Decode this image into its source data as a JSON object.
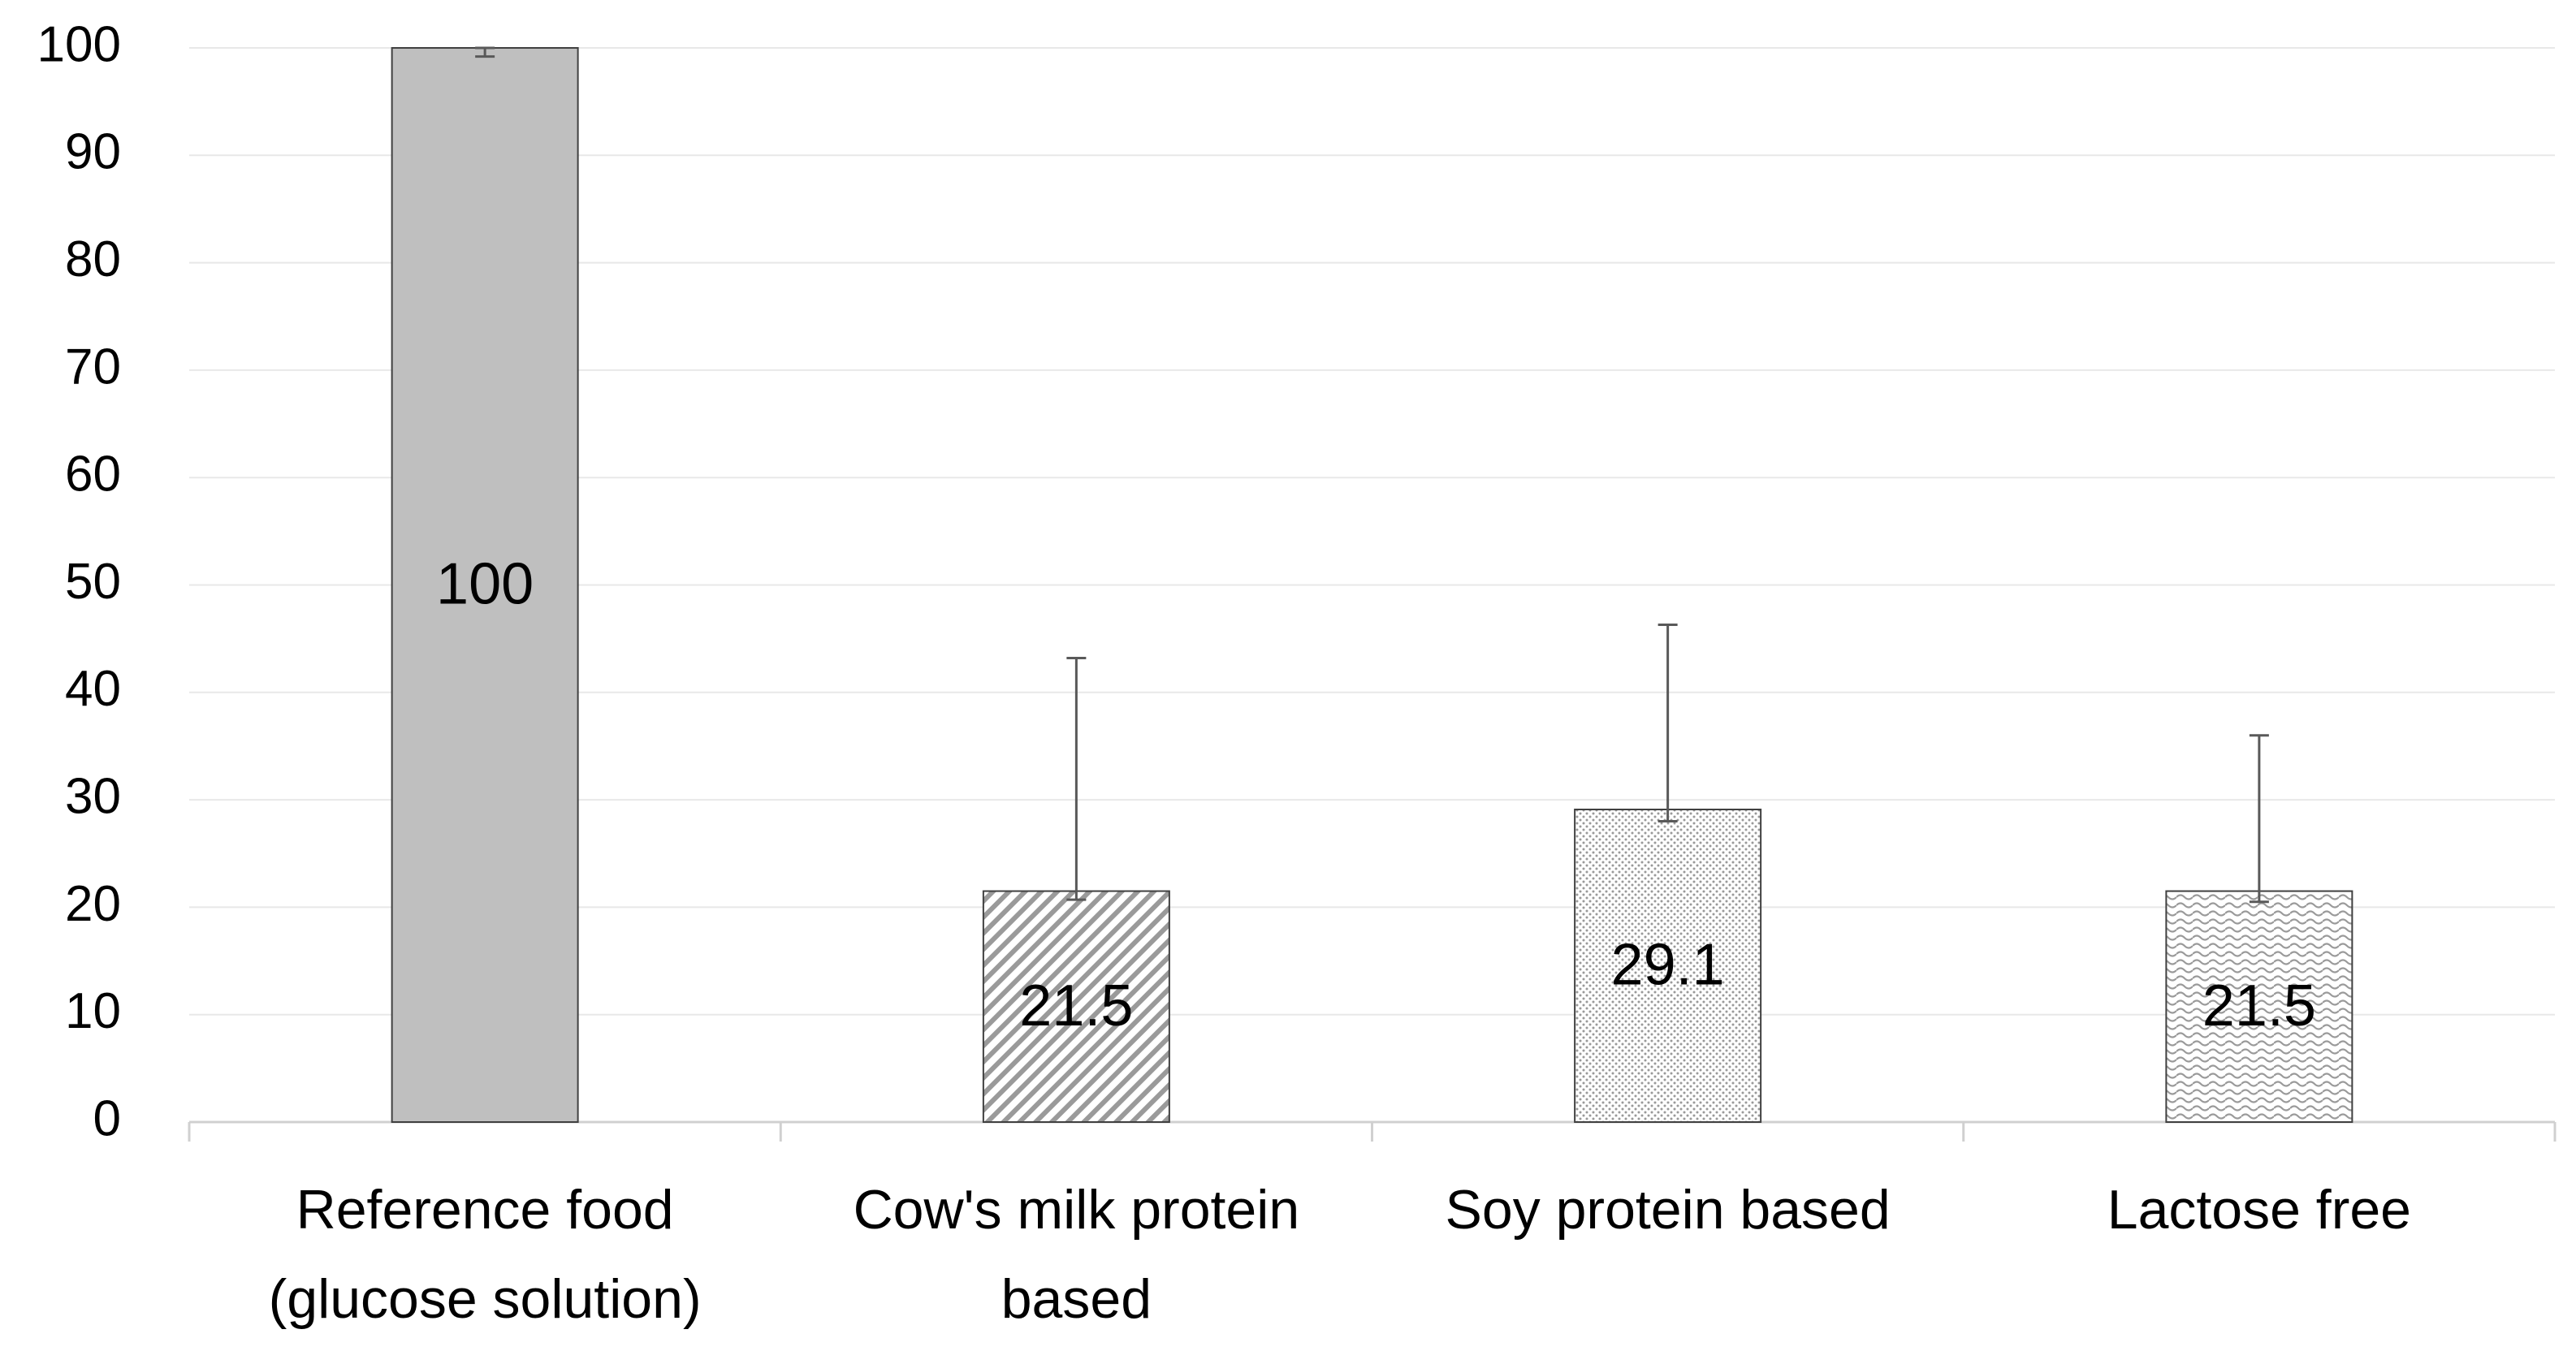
{
  "chart_data": {
    "type": "bar",
    "categories": [
      [
        "Reference food",
        "(glucose solution)"
      ],
      [
        "Cow's milk protein",
        "based"
      ],
      [
        "Soy protein based"
      ],
      [
        "Lactose free"
      ]
    ],
    "values": [
      100,
      21.5,
      29.1,
      21.5
    ],
    "error_minus": [
      0.8,
      0.8,
      1.1,
      1
    ],
    "error_plus": [
      0,
      21.7,
      17.2,
      14.5
    ],
    "patterns": [
      "solid",
      "diagonal",
      "dots",
      "waves"
    ],
    "color": "#bfbfbf",
    "ylim": [
      0,
      100
    ],
    "yticks": [
      0,
      10,
      20,
      30,
      40,
      50,
      60,
      70,
      80,
      90,
      100
    ],
    "grid": true
  }
}
